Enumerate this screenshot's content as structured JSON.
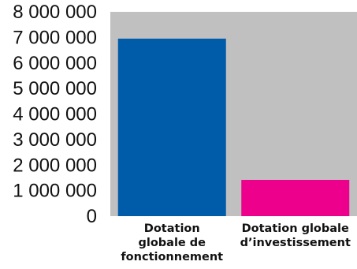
{
  "chart_data": {
    "type": "bar",
    "title": "",
    "xlabel": "",
    "ylabel": "",
    "ylim": [
      0,
      8000000
    ],
    "y_ticks": [
      0,
      1000000,
      2000000,
      3000000,
      4000000,
      5000000,
      6000000,
      7000000,
      8000000
    ],
    "y_tick_labels": [
      "0",
      "1 000 000",
      "2 000 000",
      "3 000 000",
      "4 000 000",
      "5 000 000",
      "6 000 000",
      "7 000 000",
      "8 000 000"
    ],
    "grid": false,
    "legend": "none",
    "categories": [
      [
        "Dotation",
        "globale de",
        "fonctionnement"
      ],
      [
        "Dotation globale",
        "d’investissement"
      ]
    ],
    "values": [
      6950000,
      1420000
    ],
    "colors": [
      "#005ca9",
      "#ec008c"
    ],
    "plot_background": "#c0c0c0"
  }
}
